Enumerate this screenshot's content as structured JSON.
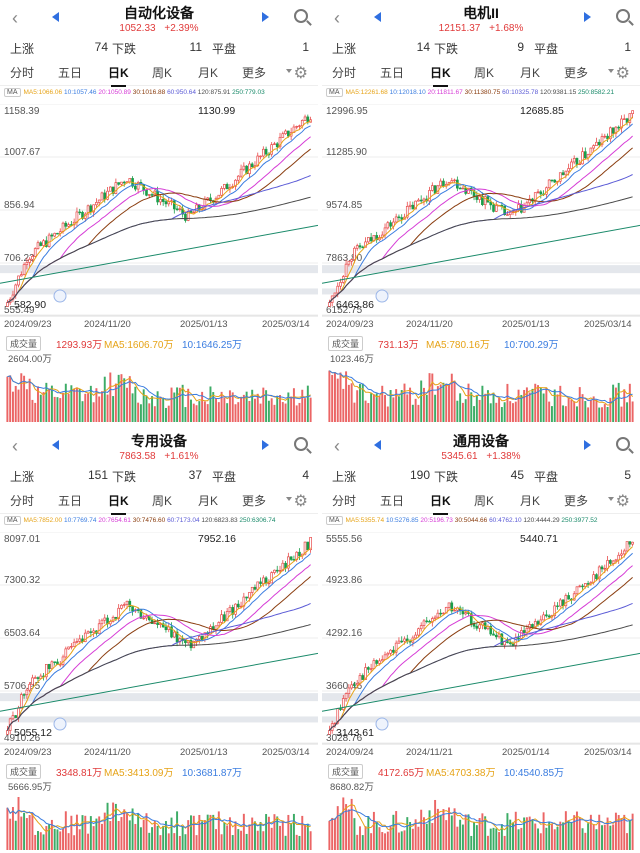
{
  "panels": [
    {
      "title": "自动化设备",
      "price": "1052.33",
      "change": "+2.39%",
      "up_label": "上涨",
      "up": "74",
      "down_label": "下跌",
      "down": "11",
      "flat_label": "平盘",
      "flat": "1",
      "tabs": [
        "分时",
        "五日",
        "日K",
        "周K",
        "月K",
        "更多"
      ],
      "active_tab": "日K",
      "ma": {
        "btn": "MA",
        "ma5": "MA5:1066.06",
        "ma10": "10:1057.46",
        "ma20": "20:1050.89",
        "ma30": "30:1016.88",
        "ma60": "60:950.64",
        "ma120": "120:875.91",
        "ma250": "250:779.03"
      },
      "high_marker": "1130.99",
      "low_marker": "582.90",
      "y_ticks": [
        "1158.39",
        "1007.67",
        "856.94",
        "706.22",
        "555.49"
      ],
      "dates": [
        "2024/09/23",
        "2024/11/20",
        "2025/01/13",
        "2025/03/14"
      ],
      "vol_btn": "成交量",
      "vol": "1293.93万",
      "vol_ma5": "MA5:1606.70万",
      "vol_ma10": "10:1646.25万",
      "vol_max": "2604.00万",
      "seed": 7,
      "chart_data": {
        "type": "candlestick",
        "start": "2024/09/23",
        "end": "2025/03/14",
        "low": 582.9,
        "high": 1130.99,
        "last": 1052.33,
        "ylim": [
          555.49,
          1158.39
        ]
      }
    },
    {
      "title": "电机II",
      "price": "12151.37",
      "change": "+1.68%",
      "up_label": "上涨",
      "up": "14",
      "down_label": "下跌",
      "down": "9",
      "flat_label": "平盘",
      "flat": "1",
      "tabs": [
        "分时",
        "五日",
        "日K",
        "周K",
        "月K",
        "更多"
      ],
      "active_tab": "日K",
      "ma": {
        "btn": "MA",
        "ma5": "MA5:12261.68",
        "ma10": "10:12018.10",
        "ma20": "20:11811.67",
        "ma30": "30:11380.75",
        "ma60": "60:10325.78",
        "ma120": "120:9381.15",
        "ma250": "250:8582.21"
      },
      "high_marker": "12685.85",
      "low_marker": "6463.86",
      "y_ticks": [
        "12996.95",
        "11285.90",
        "9574.85",
        "7863.80",
        "6152.75"
      ],
      "dates": [
        "2024/09/23",
        "2024/11/20",
        "2025/01/13",
        "2025/03/14"
      ],
      "vol_btn": "成交量",
      "vol": "731.13万",
      "vol_ma5": "MA5:780.16万",
      "vol_ma10": "10:700.29万",
      "vol_max": "1023.46万",
      "seed": 13,
      "chart_data": {
        "type": "candlestick",
        "start": "2024/09/23",
        "end": "2025/03/14",
        "low": 6463.86,
        "high": 12685.85,
        "last": 12151.37,
        "ylim": [
          6152.75,
          12996.95
        ]
      }
    },
    {
      "title": "专用设备",
      "price": "7863.58",
      "change": "+1.61%",
      "up_label": "上涨",
      "up": "151",
      "down_label": "下跌",
      "down": "37",
      "flat_label": "平盘",
      "flat": "4",
      "tabs": [
        "分时",
        "五日",
        "日K",
        "周K",
        "月K",
        "更多"
      ],
      "active_tab": "日K",
      "ma": {
        "btn": "MA",
        "ma5": "MA5:7852.00",
        "ma10": "10:7769.74",
        "ma20": "20:7654.61",
        "ma30": "30:7476.60",
        "ma60": "60:7173.04",
        "ma120": "120:6823.83",
        "ma250": "250:6306.74"
      },
      "high_marker": "7952.16",
      "low_marker": "5055.12",
      "y_ticks": [
        "8097.01",
        "7300.32",
        "6503.64",
        "5706.95",
        "4910.26"
      ],
      "dates": [
        "2024/09/23",
        "2024/11/20",
        "2025/01/13",
        "2025/03/14"
      ],
      "vol_btn": "成交量",
      "vol": "3348.81万",
      "vol_ma5": "MA5:3413.09万",
      "vol_ma10": "10:3681.87万",
      "vol_max": "5666.95万",
      "seed": 29,
      "chart_data": {
        "type": "candlestick",
        "start": "2024/09/23",
        "end": "2025/03/14",
        "low": 5055.12,
        "high": 7952.16,
        "last": 7863.58,
        "ylim": [
          4910.26,
          8097.01
        ]
      }
    },
    {
      "title": "通用设备",
      "price": "5345.61",
      "change": "+1.38%",
      "up_label": "上涨",
      "up": "190",
      "down_label": "下跌",
      "down": "45",
      "flat_label": "平盘",
      "flat": "5",
      "tabs": [
        "分时",
        "五日",
        "日K",
        "周K",
        "月K",
        "更多"
      ],
      "active_tab": "日K",
      "ma": {
        "btn": "MA",
        "ma5": "MA5:5355.74",
        "ma10": "10:5276.85",
        "ma20": "20:5196.73",
        "ma30": "30:5044.66",
        "ma60": "60:4762.10",
        "ma120": "120:4444.29",
        "ma250": "250:3977.52"
      },
      "high_marker": "5440.71",
      "low_marker": "3143.61",
      "y_ticks": [
        "5555.56",
        "4923.86",
        "4292.16",
        "3660.46",
        "3028.76"
      ],
      "dates": [
        "2024/09/24",
        "2024/11/21",
        "2025/01/14",
        "2025/03/14"
      ],
      "vol_btn": "成交量",
      "vol": "4172.65万",
      "vol_ma5": "MA5:4703.38万",
      "vol_ma10": "10:4540.85万",
      "vol_max": "8680.82万",
      "seed": 41,
      "chart_data": {
        "type": "candlestick",
        "start": "2024/09/24",
        "end": "2025/03/14",
        "low": 3143.61,
        "high": 5440.71,
        "last": 5345.61,
        "ylim": [
          3028.76,
          5555.56
        ]
      }
    }
  ],
  "colors": {
    "up": "#e84a4a",
    "down": "#1a9e4b",
    "ma5": "#e6a317",
    "ma10": "#3b7de0",
    "ma20": "#d63cd6",
    "ma30": "#8a3d0f",
    "ma60": "#5b5bd6",
    "ma120": "#4a4a4a",
    "ma250": "#1a8a6a",
    "accent": "#2f6fe0"
  }
}
